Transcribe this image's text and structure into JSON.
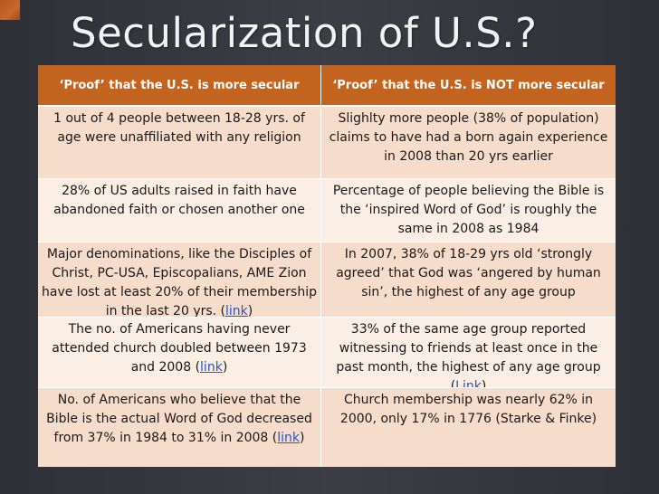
{
  "slide": {
    "title": "Secularization of U.S.?",
    "colors": {
      "background": "#3b3c44",
      "header": "#c2641f",
      "row_odd": "#f6dccb",
      "row_even": "#fbeee5",
      "link": "#2a55c6"
    }
  },
  "table": {
    "headers": {
      "secular": "‘Proof’ that the U.S. is more secular",
      "not_secular": "‘Proof’ that the U.S. is NOT more secular"
    },
    "rows": [
      {
        "left": "1 out of 4 people between 18-28 yrs. of age were unaffiliated with any religion",
        "right": "Slighlty more people (38% of population) claims to have had a born again experience in 2008 than 20 yrs earlier"
      },
      {
        "left": "28% of US adults raised in faith have abandoned faith or chosen another one",
        "right": "Percentage of people believing the Bible is the ‘inspired Word of God’ is roughly the same in 2008 as 1984"
      },
      {
        "left": "Major denominations, like the Disciples of Christ, PC-USA, Episcopalians, AME Zion have lost at least 20% of their membership in the last 20 yrs. (",
        "left_link": "link",
        "left_tail": ")",
        "right": "In 2007, 38% of 18-29 yrs old ‘strongly agreed’ that God was ‘angered by human sin’, the highest of any age group"
      },
      {
        "left": "The no. of Americans having never attended church doubled between 1973 and 2008 (",
        "left_link": "link",
        "left_tail": ")",
        "right": "33% of the same age group reported witnessing to friends at least once in the past month, the highest of any age group (",
        "right_link": "Link",
        "right_tail": ")"
      },
      {
        "left": "No. of Americans who believe that the Bible is the actual Word of God decreased from 37% in 1984 to 31% in 2008 (",
        "left_link": "link",
        "left_tail": ")",
        "right": "Church membership was nearly 62% in 2000, only 17% in 1776 (Starke & Finke)"
      }
    ]
  }
}
